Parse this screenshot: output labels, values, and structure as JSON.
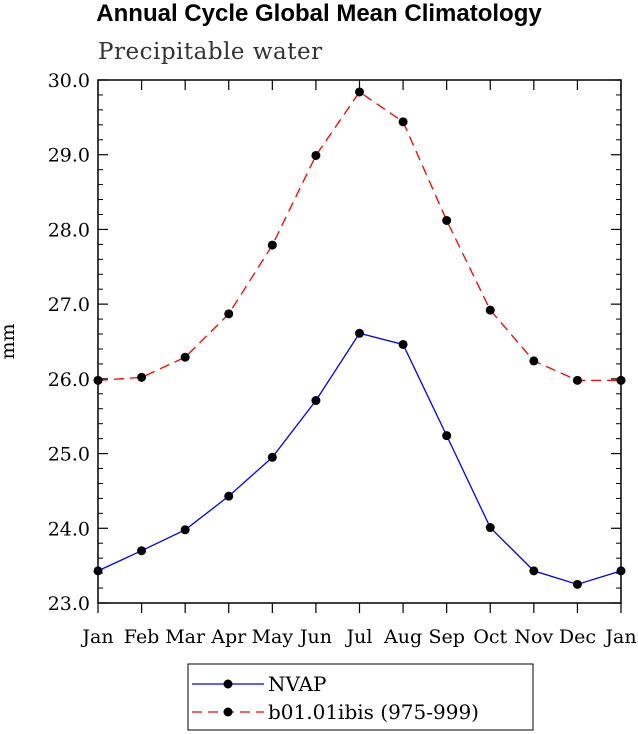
{
  "chart_data": {
    "type": "line",
    "title": "Annual Cycle Global Mean Climatology",
    "subtitle": "Precipitable water",
    "ylabel": "mm",
    "xlabel": "",
    "categories": [
      "Jan",
      "Feb",
      "Mar",
      "Apr",
      "May",
      "Jun",
      "Jul",
      "Aug",
      "Sep",
      "Oct",
      "Nov",
      "Dec",
      "Jan"
    ],
    "ylim": [
      23.0,
      30.0
    ],
    "yticks": [
      "23.0",
      "24.0",
      "25.0",
      "26.0",
      "27.0",
      "28.0",
      "29.0",
      "30.0"
    ],
    "legend_position": "bottom",
    "series": [
      {
        "name": "NVAP",
        "color": "#0000ff",
        "dash": "solid",
        "marker": "filled-circle",
        "values": [
          23.43,
          23.7,
          23.98,
          24.43,
          24.95,
          25.71,
          26.61,
          26.46,
          25.24,
          24.01,
          23.43,
          23.25,
          23.43
        ]
      },
      {
        "name": "b01.01ibis (975-999)",
        "color": "#ff0000",
        "dash": "dashed",
        "marker": "filled-circle",
        "values": [
          25.98,
          26.02,
          26.29,
          26.87,
          27.79,
          28.99,
          29.84,
          29.44,
          28.12,
          26.92,
          26.24,
          25.98,
          25.98
        ]
      }
    ]
  }
}
